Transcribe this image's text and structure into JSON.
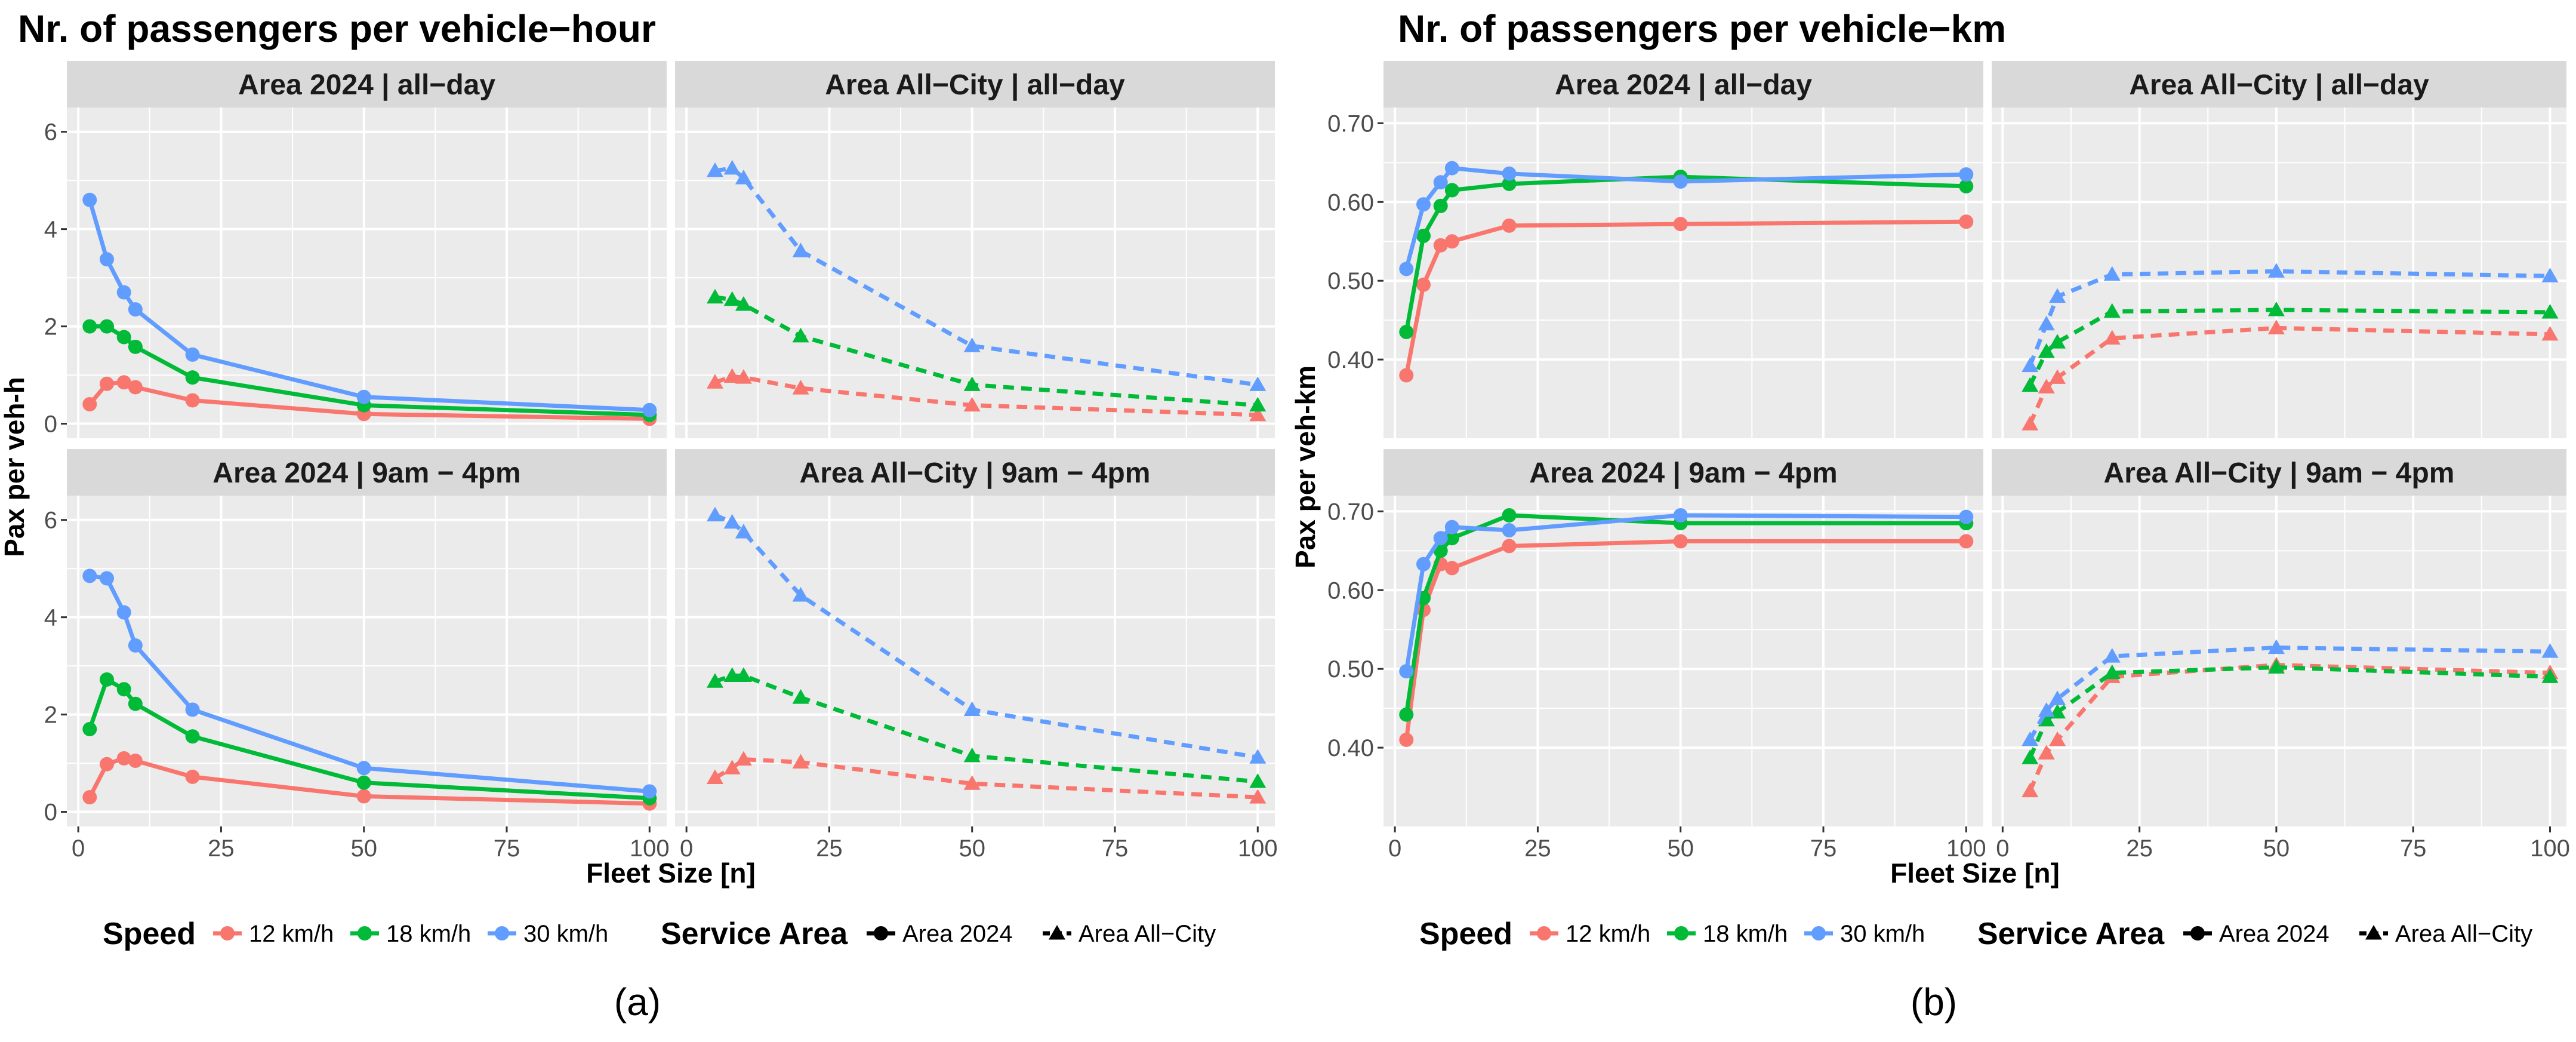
{
  "panels": [
    {
      "id": "a",
      "title": "Nr. of passengers per vehicle−hour",
      "ylabel": "Pax per veh-h",
      "xlabel": "Fleet Size [n]",
      "caption": "(a)",
      "legend": {
        "speed_title": "Speed",
        "speed_items": [
          "12 km/h",
          "18 km/h",
          "30 km/h"
        ],
        "area_title": "Service Area",
        "area_items": [
          "Area 2024",
          "Area All−City"
        ]
      }
    },
    {
      "id": "b",
      "title": "Nr. of passengers per vehicle−km",
      "ylabel": "Pax per veh-km",
      "xlabel": "Fleet Size [n]",
      "caption": "(b)",
      "legend": {
        "speed_title": "Speed",
        "speed_items": [
          "12 km/h",
          "18 km/h",
          "30 km/h"
        ],
        "area_title": "Service Area",
        "area_items": [
          "Area 2024",
          "Area All−City"
        ]
      }
    }
  ],
  "colors": {
    "12 km/h": "#F8766D",
    "18 km/h": "#00BA38",
    "30 km/h": "#619CFF",
    "strip_bg": "#D9D9D9",
    "panel_bg": "#EBEBEB",
    "grid": "#FFFFFF"
  },
  "chart_data": [
    {
      "type": "line",
      "title": "Nr. of passengers per vehicle−hour",
      "xlabel": "Fleet Size [n]",
      "ylabel": "Pax per veh-h",
      "xlim": [
        -2,
        103
      ],
      "xticks": [
        0,
        25,
        50,
        75,
        100
      ],
      "ylim": [
        -0.3,
        6.5
      ],
      "yticks": [
        0,
        2,
        4,
        6
      ],
      "ytick_labels": [
        "0",
        "2",
        "4",
        "6"
      ],
      "legend_position": "bottom",
      "facets": [
        {
          "strip": "Area 2024 | all−day",
          "area": "Area 2024",
          "series": [
            {
              "name": "12 km/h",
              "x": [
                2,
                5,
                8,
                10,
                20,
                50,
                100
              ],
              "y": [
                0.4,
                0.82,
                0.85,
                0.75,
                0.48,
                0.2,
                0.1
              ]
            },
            {
              "name": "18 km/h",
              "x": [
                2,
                5,
                8,
                10,
                20,
                50,
                100
              ],
              "y": [
                2.0,
                2.0,
                1.78,
                1.58,
                0.95,
                0.38,
                0.18
              ]
            },
            {
              "name": "30 km/h",
              "x": [
                2,
                5,
                8,
                10,
                20,
                50,
                100
              ],
              "y": [
                4.6,
                3.38,
                2.7,
                2.35,
                1.42,
                0.55,
                0.28
              ]
            }
          ]
        },
        {
          "strip": "Area All−City | all−day",
          "area": "Area All−City",
          "series": [
            {
              "name": "12 km/h",
              "x": [
                5,
                8,
                10,
                20,
                50,
                100
              ],
              "y": [
                0.85,
                0.97,
                0.95,
                0.73,
                0.38,
                0.18
              ]
            },
            {
              "name": "18 km/h",
              "x": [
                5,
                8,
                10,
                20,
                50,
                100
              ],
              "y": [
                2.6,
                2.55,
                2.45,
                1.8,
                0.8,
                0.38
              ]
            },
            {
              "name": "30 km/h",
              "x": [
                5,
                8,
                10,
                20,
                50,
                100
              ],
              "y": [
                5.2,
                5.25,
                5.05,
                3.55,
                1.6,
                0.8
              ]
            }
          ]
        },
        {
          "strip": "Area 2024 | 9am − 4pm",
          "area": "Area 2024",
          "series": [
            {
              "name": "12 km/h",
              "x": [
                2,
                5,
                8,
                10,
                20,
                50,
                100
              ],
              "y": [
                0.3,
                0.98,
                1.1,
                1.05,
                0.72,
                0.32,
                0.17
              ]
            },
            {
              "name": "18 km/h",
              "x": [
                2,
                5,
                8,
                10,
                20,
                50,
                100
              ],
              "y": [
                1.7,
                2.72,
                2.52,
                2.22,
                1.55,
                0.6,
                0.28
              ]
            },
            {
              "name": "30 km/h",
              "x": [
                2,
                5,
                8,
                10,
                20,
                50,
                100
              ],
              "y": [
                4.85,
                4.8,
                4.1,
                3.42,
                2.1,
                0.9,
                0.42
              ]
            }
          ]
        },
        {
          "strip": "Area All−City | 9am − 4pm",
          "area": "Area All−City",
          "series": [
            {
              "name": "12 km/h",
              "x": [
                5,
                8,
                10,
                20,
                50,
                100
              ],
              "y": [
                0.7,
                0.9,
                1.08,
                1.02,
                0.58,
                0.3
              ]
            },
            {
              "name": "18 km/h",
              "x": [
                5,
                8,
                10,
                20,
                50,
                100
              ],
              "y": [
                2.68,
                2.8,
                2.8,
                2.35,
                1.15,
                0.62
              ]
            },
            {
              "name": "30 km/h",
              "x": [
                5,
                8,
                10,
                20,
                50,
                100
              ],
              "y": [
                6.1,
                5.95,
                5.75,
                4.45,
                2.1,
                1.12
              ]
            }
          ]
        }
      ]
    },
    {
      "type": "line",
      "title": "Nr. of passengers per vehicle−km",
      "xlabel": "Fleet Size [n]",
      "ylabel": "Pax per veh-km",
      "xlim": [
        -2,
        103
      ],
      "xticks": [
        0,
        25,
        50,
        75,
        100
      ],
      "ylim": [
        0.3,
        0.72
      ],
      "yticks": [
        0.4,
        0.5,
        0.6,
        0.7
      ],
      "ytick_labels": [
        "0.40",
        "0.50",
        "0.60",
        "0.70"
      ],
      "legend_position": "bottom",
      "facets": [
        {
          "strip": "Area 2024 | all−day",
          "area": "Area 2024",
          "series": [
            {
              "name": "12 km/h",
              "x": [
                2,
                5,
                8,
                10,
                20,
                50,
                100
              ],
              "y": [
                0.38,
                0.495,
                0.545,
                0.55,
                0.57,
                0.572,
                0.575
              ]
            },
            {
              "name": "18 km/h",
              "x": [
                2,
                5,
                8,
                10,
                20,
                50,
                100
              ],
              "y": [
                0.435,
                0.557,
                0.595,
                0.615,
                0.623,
                0.632,
                0.62
              ]
            },
            {
              "name": "30 km/h",
              "x": [
                2,
                5,
                8,
                10,
                20,
                50,
                100
              ],
              "y": [
                0.515,
                0.597,
                0.625,
                0.643,
                0.636,
                0.626,
                0.635
              ]
            }
          ]
        },
        {
          "strip": "Area All−City | all−day",
          "area": "Area All−City",
          "series": [
            {
              "name": "12 km/h",
              "x": [
                5,
                8,
                10,
                20,
                50,
                100
              ],
              "y": [
                0.318,
                0.365,
                0.377,
                0.427,
                0.44,
                0.432
              ]
            },
            {
              "name": "18 km/h",
              "x": [
                5,
                8,
                10,
                20,
                50,
                100
              ],
              "y": [
                0.367,
                0.41,
                0.422,
                0.461,
                0.463,
                0.46
              ]
            },
            {
              "name": "30 km/h",
              "x": [
                5,
                8,
                10,
                20,
                50,
                100
              ],
              "y": [
                0.392,
                0.445,
                0.48,
                0.508,
                0.512,
                0.506
              ]
            }
          ]
        },
        {
          "strip": "Area 2024 | 9am − 4pm",
          "area": "Area 2024",
          "series": [
            {
              "name": "12 km/h",
              "x": [
                2,
                5,
                8,
                10,
                20,
                50,
                100
              ],
              "y": [
                0.41,
                0.575,
                0.633,
                0.628,
                0.656,
                0.662,
                0.662
              ]
            },
            {
              "name": "18 km/h",
              "x": [
                2,
                5,
                8,
                10,
                20,
                50,
                100
              ],
              "y": [
                0.442,
                0.59,
                0.65,
                0.666,
                0.695,
                0.685,
                0.685
              ]
            },
            {
              "name": "30 km/h",
              "x": [
                2,
                5,
                8,
                10,
                20,
                50,
                100
              ],
              "y": [
                0.497,
                0.633,
                0.666,
                0.68,
                0.676,
                0.695,
                0.693
              ]
            }
          ]
        },
        {
          "strip": "Area All−City | 9am − 4pm",
          "area": "Area All−City",
          "series": [
            {
              "name": "12 km/h",
              "x": [
                5,
                8,
                10,
                20,
                50,
                100
              ],
              "y": [
                0.345,
                0.393,
                0.41,
                0.49,
                0.505,
                0.495
              ]
            },
            {
              "name": "18 km/h",
              "x": [
                5,
                8,
                10,
                20,
                50,
                100
              ],
              "y": [
                0.387,
                0.435,
                0.445,
                0.495,
                0.502,
                0.49
              ]
            },
            {
              "name": "30 km/h",
              "x": [
                5,
                8,
                10,
                20,
                50,
                100
              ],
              "y": [
                0.41,
                0.447,
                0.462,
                0.516,
                0.527,
                0.522
              ]
            }
          ]
        }
      ]
    }
  ]
}
